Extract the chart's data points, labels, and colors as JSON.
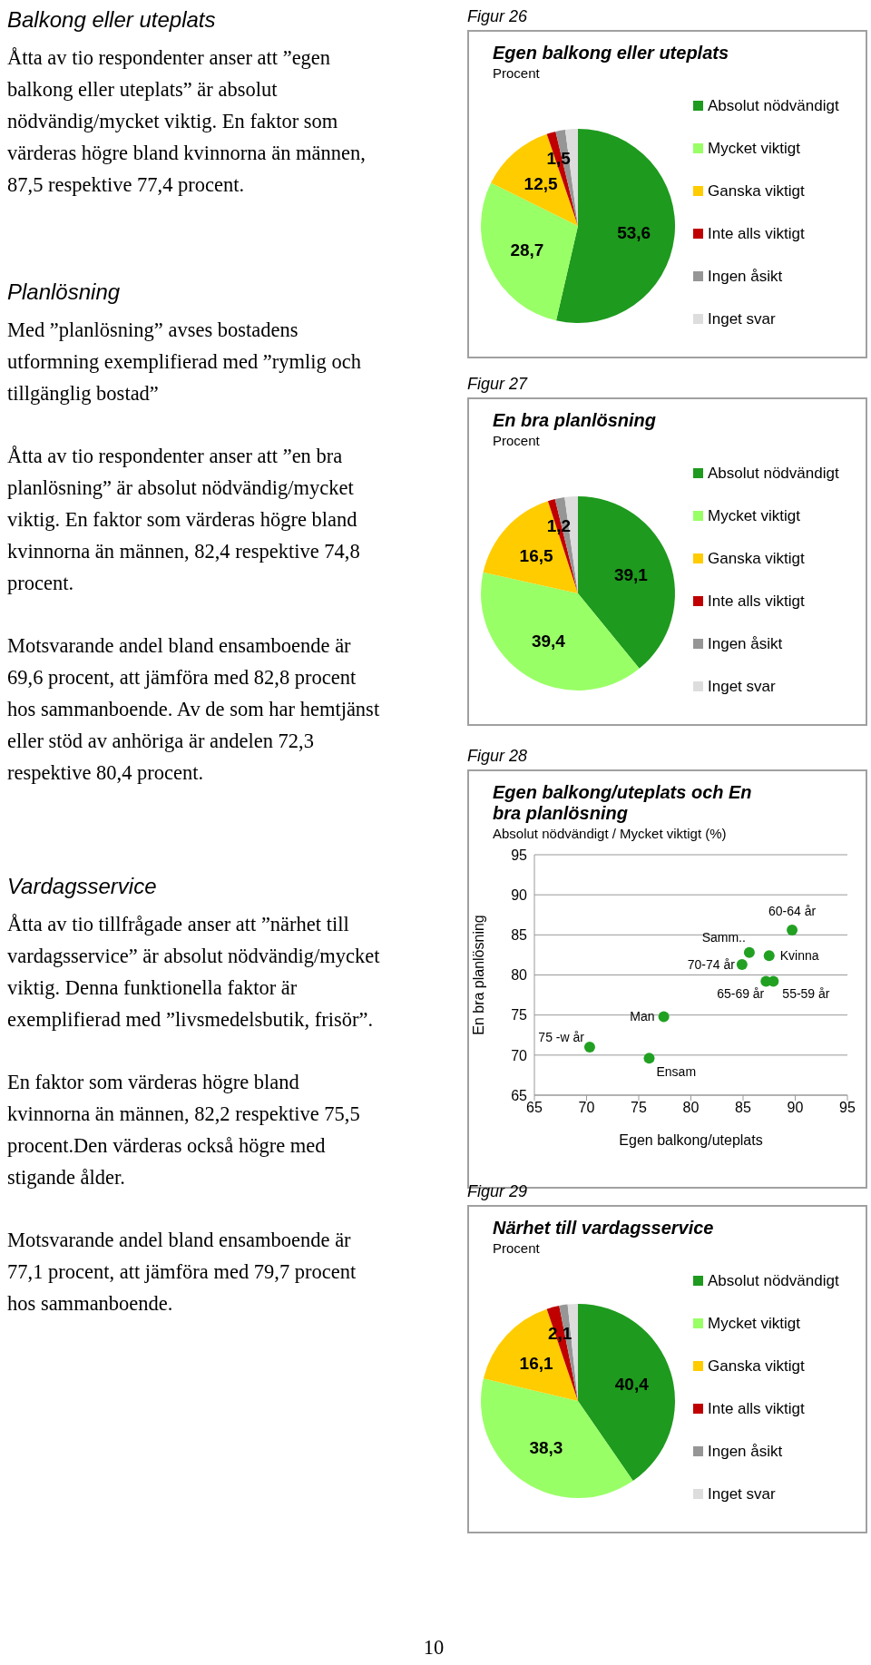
{
  "chart_data": [
    {
      "type": "other",
      "title": "Balkong eller uteplats",
      "annotations": [
        "Åtta av tio respondenter anser att ”egen balkong eller uteplats” är absolut nödvändig/mycket viktig. En faktor som värderas högre bland kvinnorna än männen, 87,5 respektive 77,4 procent."
      ]
    },
    {
      "type": "other",
      "title": "Planlösning",
      "annotations": [
        "Med ”planlösning” avses bostadens utformning exemplifierad med ”rymlig och tillgänglig bostad”",
        "Åtta av tio respondenter anser att ”en bra planlösning” är absolut nödvändig/mycket viktig. En faktor som värderas högre bland kvinnorna än männen, 82,4 respektive 74,8 procent.",
        "Motsvarande andel bland ensamboende är 69,6 procent, att jämföra med 82,8 procent hos sammanboende. Av de som har hemtjänst eller stöd av anhöriga är andelen 72,3 respektive 80,4 procent."
      ]
    },
    {
      "type": "other",
      "title": "Vardagsservice",
      "annotations": [
        "Åtta av tio tillfrågade anser att ”närhet till vardagsservice” är absolut nödvändig/mycket viktig. Denna funktionella faktor är exemplifierad med ”livsmedelsbutik, frisör”.",
        "En faktor som värderas högre bland kvinnorna än männen, 82,2 respektive 75,5 procent.Den värderas också högre med stigande ålder.",
        "Motsvarande andel bland ensamboende är 77,1 procent, att jämföra med 79,7 procent hos sammanboende."
      ]
    },
    {
      "type": "other",
      "annotations": [
        "10"
      ]
    },
    {
      "type": "pie",
      "title": "Egen balkong eller uteplats",
      "subtitle": "Procent",
      "annotations": [
        "Figur 26"
      ],
      "legend": "right",
      "categories": [
        "Absolut nödvändigt",
        "Mycket viktigt",
        "Ganska viktigt",
        "Inte alls viktigt",
        "Ingen åsikt",
        "Inget svar"
      ],
      "values": [
        53.6,
        28.7,
        12.5,
        1.5,
        1.6,
        2.1
      ],
      "value_labels": [
        "53,6",
        "28,7",
        "12,5",
        "1,5",
        null,
        null
      ],
      "colors": [
        "#1e9a1e",
        "#99ff66",
        "#ffcc00",
        "#c00000",
        "#969696",
        "#dddddd"
      ]
    },
    {
      "type": "pie",
      "title": "En bra planlösning",
      "subtitle": "Procent",
      "annotations": [
        "Figur 27"
      ],
      "legend": "right",
      "categories": [
        "Absolut nödvändigt",
        "Mycket viktigt",
        "Ganska viktigt",
        "Inte alls viktigt",
        "Ingen åsikt",
        "Inget svar"
      ],
      "values": [
        39.1,
        39.4,
        16.5,
        1.2,
        1.6,
        2.2
      ],
      "value_labels": [
        "39,1",
        "39,4",
        "16,5",
        "1,2",
        null,
        null
      ],
      "colors": [
        "#1e9a1e",
        "#99ff66",
        "#ffcc00",
        "#c00000",
        "#969696",
        "#dddddd"
      ]
    },
    {
      "type": "scatter",
      "title": "Egen balkong/uteplats och En bra planlösning",
      "subtitle": "Absolut nödvändigt / Mycket viktigt (%)",
      "xlabel": "Egen balkong/uteplats",
      "ylabel": "En bra planlösning",
      "marker": "circle",
      "grid": "y",
      "color": "#22a022",
      "x": [
        70.3,
        76.0,
        77.4,
        84.9,
        85.6,
        87.5,
        87.2,
        87.9,
        89.7
      ],
      "values": [
        71.0,
        69.6,
        74.8,
        81.3,
        82.8,
        82.4,
        79.2,
        79.2,
        85.6
      ],
      "xlim": [
        65,
        95
      ],
      "xticks": [
        65,
        70,
        75,
        80,
        85,
        90,
        95
      ],
      "ylim": [
        65,
        95
      ],
      "yticks": [
        65,
        70,
        75,
        80,
        85,
        90,
        95
      ],
      "annotations": [
        "Figur 28",
        {
          "text": "75 -w år",
          "x": 70.3,
          "y": 71.0
        },
        {
          "text": "Ensam",
          "x": 76.0,
          "y": 69.6
        },
        {
          "text": "Man",
          "x": 77.4,
          "y": 74.8
        },
        {
          "text": "70-74 år",
          "x": 84.9,
          "y": 81.3
        },
        {
          "text": "Samm..",
          "x": 85.6,
          "y": 82.8
        },
        {
          "text": "Kvinna",
          "x": 87.5,
          "y": 82.4
        },
        {
          "text": "65-69 år",
          "x": 87.2,
          "y": 79.2
        },
        {
          "text": "55-59 år",
          "x": 87.9,
          "y": 79.2
        },
        {
          "text": "60-64 år",
          "x": 89.7,
          "y": 85.6
        }
      ]
    },
    {
      "type": "pie",
      "title": "Närhet till vardagsservice",
      "subtitle": "Procent",
      "annotations": [
        "Figur 29"
      ],
      "legend": "right",
      "categories": [
        "Absolut nödvändigt",
        "Mycket viktigt",
        "Ganska viktigt",
        "Inte alls viktigt",
        "Ingen åsikt",
        "Inget svar"
      ],
      "values": [
        40.4,
        38.3,
        16.1,
        2.1,
        1.4,
        1.7
      ],
      "value_labels": [
        "40,4",
        "38,3",
        "16,1",
        "2,1",
        null,
        null
      ],
      "colors": [
        "#1e9a1e",
        "#99ff66",
        "#ffcc00",
        "#c00000",
        "#969696",
        "#dddddd"
      ]
    }
  ]
}
